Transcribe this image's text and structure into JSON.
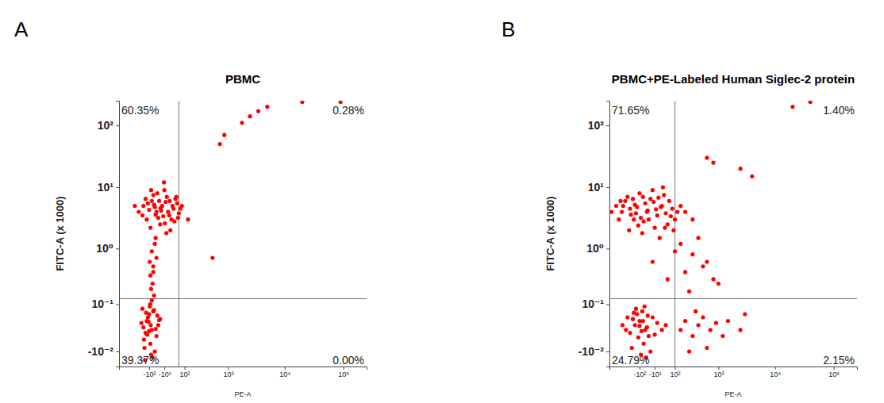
{
  "chart_data": [
    {
      "type": "scatter",
      "panel_label": "A",
      "title": "PBMC",
      "x_label": "PE-A",
      "y_label": "FITC-A (x 1000)",
      "color": "#ff0000",
      "log": true,
      "xlim": [
        -550,
        250000
      ],
      "ylim": [
        -0.04,
        250
      ],
      "xticks": [
        {
          "value": -100,
          "label": "-10²"
        },
        {
          "value": -10,
          "label": "-10¹"
        },
        {
          "value": 100,
          "label": "10²"
        },
        {
          "value": 1000,
          "label": "10³"
        },
        {
          "value": 10000,
          "label": "10⁴"
        },
        {
          "value": 100000,
          "label": "10⁵"
        }
      ],
      "yticks": [
        {
          "value": 100,
          "label": "10²"
        },
        {
          "value": 10,
          "label": "10¹"
        },
        {
          "value": 1,
          "label": "10⁰"
        },
        {
          "value": 0.1,
          "label": "10⁻¹"
        },
        {
          "value": -0.01,
          "label": "-10⁻²"
        }
      ],
      "gates": {
        "x": 60,
        "y": 0.13
      },
      "quadrants": {
        "values": [
          60.35,
          0.28,
          39.37,
          0
        ],
        "value_labels": [
          "60.35%",
          "0.28%",
          "39.37%",
          "0.00%"
        ]
      },
      "x": [
        -50,
        -20,
        10,
        -80,
        30,
        -120,
        0,
        -30,
        50,
        -60,
        -150,
        20,
        -10,
        -40,
        60,
        -90,
        -5,
        40,
        -200,
        -70,
        15,
        -25,
        70,
        -110,
        -35,
        5,
        -55,
        25,
        -15,
        -130,
        -45,
        35,
        -100,
        -8,
        45,
        -160,
        -65,
        12,
        -28,
        55,
        -85,
        -2,
        -250,
        80,
        -12,
        -60,
        -80,
        -50,
        -70,
        -90,
        -75,
        -85,
        -65,
        -55,
        -95,
        -70,
        -80,
        -80,
        -120,
        -50,
        -100,
        -140,
        -40,
        -160,
        -90,
        -110,
        -60,
        -130,
        -70,
        -150,
        -30,
        -85,
        -170,
        -95,
        -115,
        -45,
        -75,
        -125,
        -55,
        -105,
        -145,
        -65,
        -88,
        -135,
        -100,
        -35,
        -92,
        130,
        500,
        700,
        850,
        1800,
        2500,
        3500,
        5000,
        20000,
        90000
      ],
      "y": [
        4,
        5,
        3.5,
        6,
        4.5,
        3,
        7,
        2.5,
        5.5,
        4.8,
        5,
        3,
        9,
        3.2,
        3.8,
        2.2,
        5.8,
        6.5,
        4,
        7.5,
        2,
        4.2,
        4.5,
        5.5,
        6,
        4,
        3.6,
        5,
        3.4,
        6.5,
        8,
        2.8,
        4.3,
        2.6,
        7,
        3.5,
        5.2,
        6,
        4.6,
        3.2,
        9,
        1.8,
        5,
        5,
        12,
        1.2,
        0.9,
        0.7,
        0.5,
        0.35,
        0.25,
        0.2,
        0.15,
        1.5,
        0.6,
        0.4,
        0.12,
        0.02,
        0.04,
        0.01,
        0.06,
        -0.005,
        0.03,
        0.08,
        0,
        0.05,
        -0.01,
        0.015,
        0.07,
        0.025,
        0.045,
        -0.015,
        0.035,
        0.09,
        0.012,
        0.055,
        -0.02,
        0.065,
        0.022,
        0.038,
        0.005,
        0.075,
        0.03,
        -0.025,
        0.018,
        0.042,
        0.1,
        3,
        0.7,
        50,
        70,
        110,
        140,
        170,
        200,
        240,
        240
      ]
    },
    {
      "type": "scatter",
      "panel_label": "B",
      "title": "PBMC+PE-Labeled Human Siglec-2 protein",
      "x_label": "PE-A",
      "y_label": "FITC-A (x 1000)",
      "color": "#ff0000",
      "log": true,
      "xlim": [
        -550,
        250000
      ],
      "ylim": [
        -0.04,
        250
      ],
      "xticks": [
        {
          "value": -100,
          "label": "-10²"
        },
        {
          "value": -10,
          "label": "-10¹"
        },
        {
          "value": 100,
          "label": "10²"
        },
        {
          "value": 1000,
          "label": "10³"
        },
        {
          "value": 10000,
          "label": "10⁴"
        },
        {
          "value": 100000,
          "label": "10⁵"
        }
      ],
      "yticks": [
        {
          "value": 100,
          "label": "10²"
        },
        {
          "value": 10,
          "label": "10¹"
        },
        {
          "value": 1,
          "label": "10⁰"
        },
        {
          "value": 0.1,
          "label": "10⁻¹"
        },
        {
          "value": -0.01,
          "label": "-10⁻²"
        }
      ],
      "gates": {
        "x": 100,
        "y": 0.13
      },
      "quadrants": {
        "values": [
          71.65,
          1.4,
          24.79,
          2.15
        ],
        "value_labels": [
          "71.65%",
          "1.40%",
          "24.79%",
          "2.15%"
        ]
      },
      "x": [
        -50,
        -150,
        20,
        -250,
        50,
        -100,
        0,
        -300,
        80,
        -200,
        -30,
        100,
        -400,
        -80,
        30,
        -120,
        -10,
        60,
        -180,
        -60,
        120,
        -350,
        -20,
        10,
        -90,
        -220,
        40,
        -140,
        -5,
        90,
        -70,
        -280,
        25,
        -40,
        150,
        -160,
        -15,
        70,
        -110,
        -320,
        200,
        -45,
        5,
        -190,
        35,
        -75,
        300,
        -130,
        15,
        -500,
        150,
        300,
        500,
        200,
        800,
        100,
        400,
        1000,
        250,
        600,
        -20,
        50,
        -60,
        -100,
        -40,
        -140,
        -70,
        -20,
        -120,
        -190,
        -80,
        -30,
        -160,
        -50,
        -240,
        0,
        -90,
        -130,
        -45,
        -110,
        20,
        -170,
        -65,
        -220,
        -10,
        -100,
        -150,
        -55,
        -75,
        40,
        -290,
        -85,
        150,
        200,
        300,
        400,
        250,
        500,
        700,
        900,
        1200,
        350,
        600,
        1500,
        2500,
        3000,
        600,
        800,
        2500,
        4000,
        20000,
        40000
      ],
      "y": [
        4,
        3,
        5,
        6,
        2.5,
        8,
        3.5,
        4,
        4.5,
        2,
        6.5,
        3,
        5,
        1.8,
        7.5,
        4.8,
        2.2,
        6,
        3.6,
        5.5,
        4,
        3,
        9,
        1.5,
        3.2,
        7,
        3.8,
        5.2,
        4.4,
        2,
        2.8,
        5,
        10,
        3,
        5,
        6.5,
        5.8,
        3.4,
        2.4,
        6,
        4,
        4.2,
        6.8,
        4.5,
        2.2,
        7,
        3,
        3.8,
        4.8,
        4,
        1.2,
        0.8,
        0.5,
        0.4,
        0.3,
        0.9,
        1.5,
        0.25,
        0.18,
        0.6,
        0.6,
        0.3,
        0.02,
        0.04,
        0.01,
        0.03,
        0,
        0.05,
        0.06,
        0.015,
        0.07,
        -0.01,
        0.045,
        0.025,
        0.02,
        0.035,
        -0.015,
        0.08,
        0.055,
        0.008,
        0.02,
        -0.005,
        0.09,
        0.05,
        0.012,
        0.028,
        0.065,
        -0.02,
        0.04,
        0.03,
        0.03,
        0.018,
        0.02,
        0.04,
        0.01,
        0.03,
        -0.01,
        0.05,
        0.02,
        0.035,
        0.01,
        0.07,
        -0.005,
        0.04,
        0.02,
        0.06,
        30,
        25,
        20,
        15,
        200,
        240
      ]
    }
  ]
}
